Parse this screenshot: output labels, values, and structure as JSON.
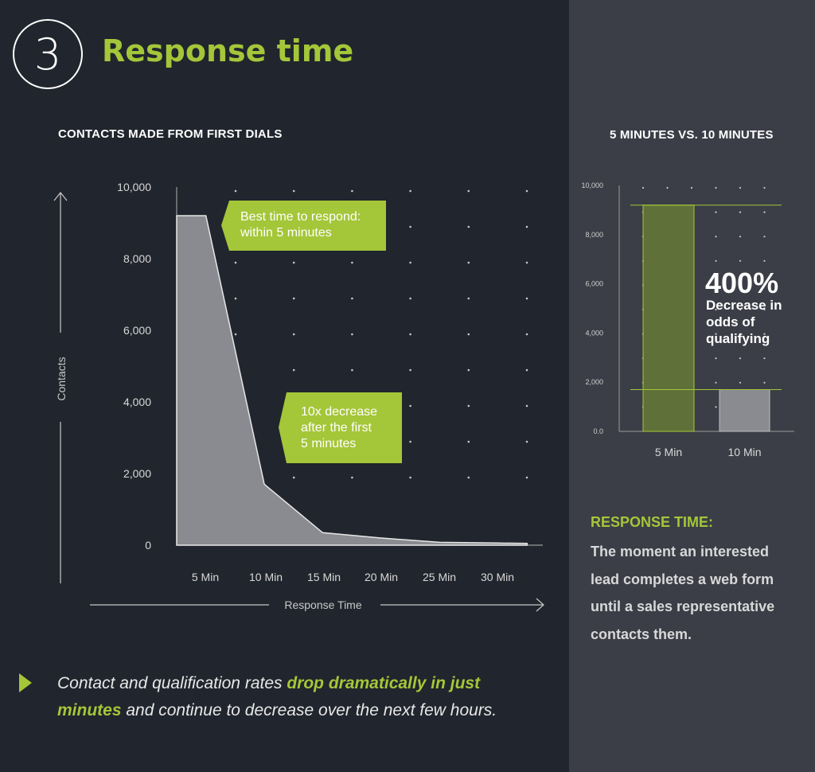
{
  "header": {
    "step_number": "3",
    "title": "Response time"
  },
  "colors": {
    "accent": "#a4c639",
    "background": "#21252d",
    "panel": "#3b3e46",
    "area_fill": "#8a8b90"
  },
  "chart_data": [
    {
      "type": "area",
      "title": "CONTACTS MADE FROM FIRST DIALS",
      "xlabel": "Response Time",
      "ylabel": "Contacts",
      "ylim": [
        0,
        10000
      ],
      "yticks": [
        "10,000",
        "8,000",
        "6,000",
        "4,000",
        "2,000",
        "0"
      ],
      "x_tick_labels": [
        "5 Min",
        "10 Min",
        "15 Min",
        "20 Min",
        "25 Min",
        "30 Min"
      ],
      "x": [
        0,
        5,
        15,
        25,
        35,
        45,
        55,
        60
      ],
      "values": [
        9200,
        9200,
        1700,
        350,
        200,
        80,
        60,
        50
      ],
      "grid": "dotted",
      "annotations": [
        {
          "lines": [
            "Best time to respond:",
            "within 5 minutes"
          ]
        },
        {
          "lines": [
            "10x decrease",
            "after the first",
            "5 minutes"
          ]
        }
      ]
    },
    {
      "type": "bar",
      "title": "5 MINUTES VS. 10 MINUTES",
      "categories": [
        "5 Min",
        "10 Min"
      ],
      "values": [
        9200,
        1700
      ],
      "ylim": [
        0,
        10000
      ],
      "yticks": [
        "10,000",
        "8,000",
        "6,000",
        "4,000",
        "2,000",
        "0.0"
      ],
      "bar_colors": [
        "#5f7138",
        "#8a8b90"
      ],
      "annotation": {
        "value": "400%",
        "lines": [
          "Decrease in",
          "odds of",
          "qualifying"
        ]
      }
    }
  ],
  "response_time": {
    "heading": "RESPONSE TIME:",
    "lines": [
      "The moment an interested",
      "lead completes a web form",
      "until a sales representative",
      "contacts them."
    ]
  },
  "footer": {
    "text_1": "Contact and qualification rates ",
    "highlight": "drop dramatically in just minutes",
    "text_2": " and continue to decrease over the next few hours."
  }
}
